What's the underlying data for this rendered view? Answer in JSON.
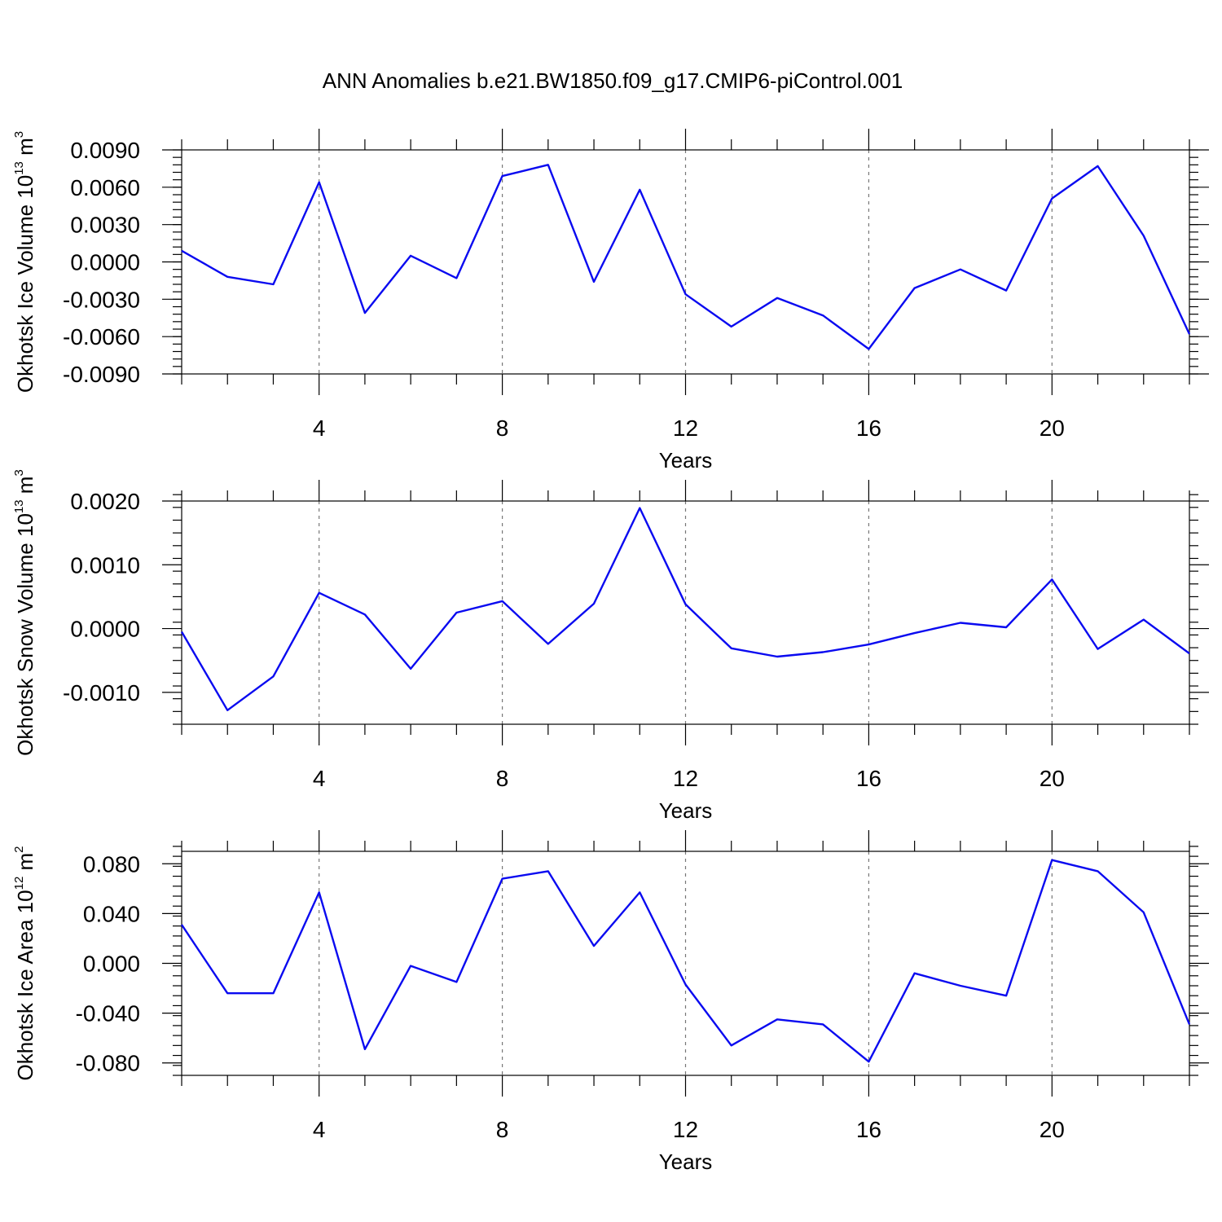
{
  "title": "ANN Anomalies b.e21.BW1850.f09_g17.CMIP6-piControl.001",
  "chart_data": [
    {
      "type": "line",
      "ylabel": {
        "main": "Okhotsk Ice Volume 10",
        "exp": "13",
        "unit": " m",
        "unit_exp": "3"
      },
      "xlabel": "Years",
      "xlim": [
        1,
        23
      ],
      "ylim": [
        -0.009,
        0.009
      ],
      "yticks": [
        -0.009,
        -0.006,
        -0.003,
        0.0,
        0.003,
        0.006,
        0.009
      ],
      "ytick_labels": [
        "-0.0090",
        "-0.0060",
        "-0.0030",
        "0.0000",
        "0.0030",
        "0.0060",
        "0.0090"
      ],
      "yminor_step": 0.0006,
      "xticks": [
        4,
        8,
        12,
        16,
        20
      ],
      "grid": "dashed vertical at major x ticks",
      "series": [
        {
          "name": "Okhotsk Ice Volume",
          "color": "#0a0af0",
          "x": [
            1,
            2,
            3,
            4,
            5,
            6,
            7,
            8,
            9,
            10,
            11,
            12,
            13,
            14,
            15,
            16,
            17,
            18,
            19,
            20,
            21,
            22,
            23
          ],
          "values": [
            0.0009,
            -0.0012,
            -0.0018,
            0.0064,
            -0.0041,
            0.0005,
            -0.0013,
            0.0069,
            0.0078,
            -0.0016,
            0.0058,
            -0.0026,
            -0.0052,
            -0.0029,
            -0.0043,
            -0.007,
            -0.0021,
            -0.0006,
            -0.0023,
            0.0051,
            0.0077,
            0.0021,
            -0.0058
          ]
        }
      ]
    },
    {
      "type": "line",
      "ylabel": {
        "main": "Okhotsk Snow Volume 10",
        "exp": "13",
        "unit": " m",
        "unit_exp": "3"
      },
      "xlabel": "Years",
      "xlim": [
        1,
        23
      ],
      "ylim": [
        -0.0015,
        0.002
      ],
      "yticks": [
        -0.001,
        0.0,
        0.001,
        0.002
      ],
      "ytick_labels": [
        "-0.0010",
        "0.0000",
        "0.0010",
        "0.0020"
      ],
      "yminor_step": 0.0002,
      "xticks": [
        4,
        8,
        12,
        16,
        20
      ],
      "grid": "dashed vertical at major x ticks",
      "series": [
        {
          "name": "Okhotsk Snow Volume",
          "color": "#0a0af0",
          "x": [
            1,
            2,
            3,
            4,
            5,
            6,
            7,
            8,
            9,
            10,
            11,
            12,
            13,
            14,
            15,
            16,
            17,
            18,
            19,
            20,
            21,
            22,
            23
          ],
          "values": [
            -5e-05,
            -0.00128,
            -0.00075,
            0.00056,
            0.00022,
            -0.00063,
            0.00025,
            0.00043,
            -0.00024,
            0.00039,
            0.00189,
            0.00038,
            -0.00031,
            -0.00044,
            -0.00037,
            -0.00025,
            -7e-05,
            9e-05,
            2e-05,
            0.00077,
            -0.00032,
            0.00014,
            -0.00039
          ]
        }
      ]
    },
    {
      "type": "line",
      "ylabel": {
        "main": "Okhotsk Ice Area 10",
        "exp": "12",
        "unit": " m",
        "unit_exp": "2"
      },
      "xlabel": "Years",
      "xlim": [
        1,
        23
      ],
      "ylim": [
        -0.09,
        0.09
      ],
      "yticks": [
        -0.08,
        -0.04,
        0.0,
        0.04,
        0.08
      ],
      "ytick_labels": [
        "-0.080",
        "-0.040",
        "0.000",
        "0.040",
        "0.080"
      ],
      "yminor_step": 0.008,
      "xticks": [
        4,
        8,
        12,
        16,
        20
      ],
      "grid": "dashed vertical at major x ticks",
      "series": [
        {
          "name": "Okhotsk Ice Area",
          "color": "#0a0af0",
          "x": [
            1,
            2,
            3,
            4,
            5,
            6,
            7,
            8,
            9,
            10,
            11,
            12,
            13,
            14,
            15,
            16,
            17,
            18,
            19,
            20,
            21,
            22,
            23
          ],
          "values": [
            0.031,
            -0.024,
            -0.024,
            0.057,
            -0.069,
            -0.002,
            -0.015,
            0.068,
            0.074,
            0.014,
            0.057,
            -0.017,
            -0.066,
            -0.045,
            -0.049,
            -0.079,
            -0.008,
            -0.018,
            -0.026,
            0.083,
            0.074,
            0.041,
            -0.049
          ]
        }
      ]
    }
  ]
}
